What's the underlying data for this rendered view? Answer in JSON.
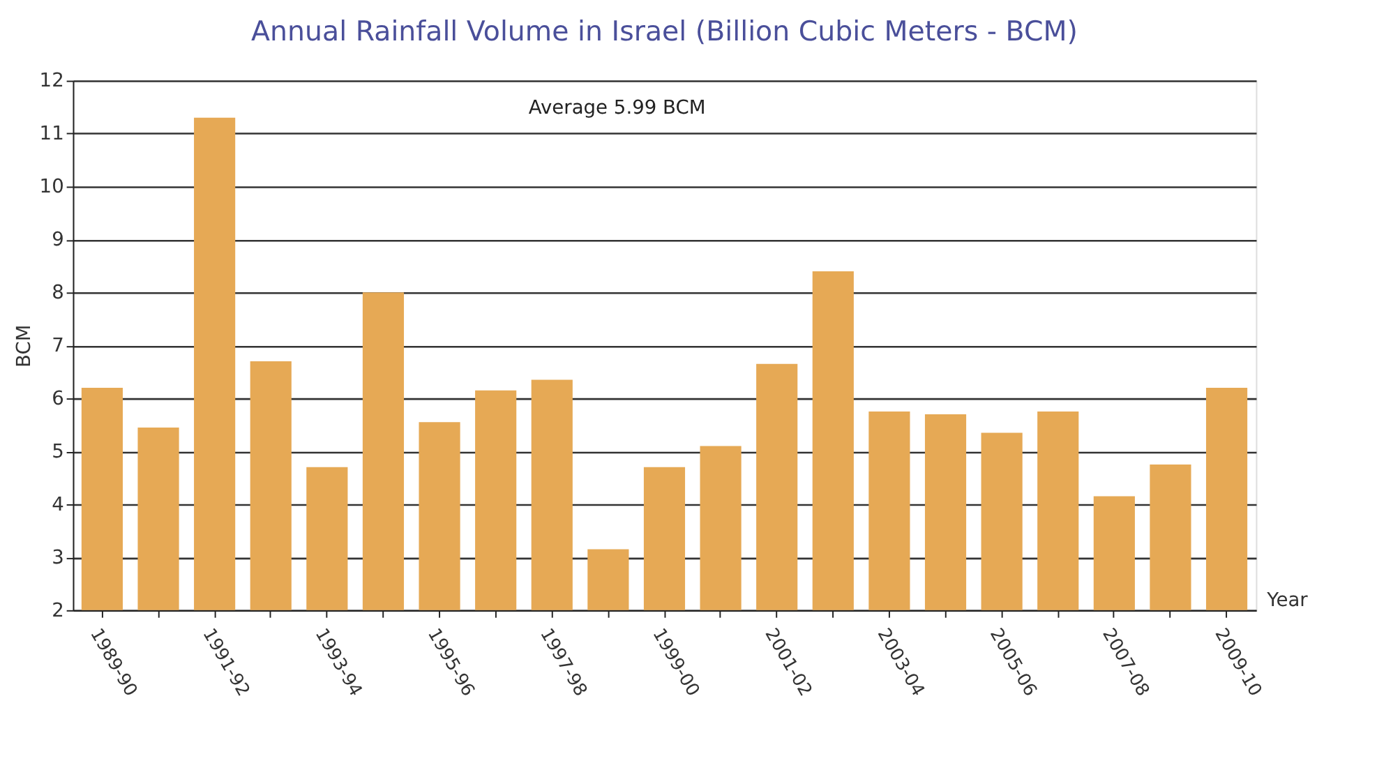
{
  "chart_data": {
    "type": "bar",
    "title": "Annual Rainfall Volume in Israel (Billion Cubic Meters - BCM)",
    "xlabel": "Year",
    "ylabel": "BCM",
    "categories": [
      "1989-90",
      null,
      "1991-92",
      null,
      "1993-94",
      null,
      "1995-96",
      null,
      "1997-98",
      null,
      "1999-00",
      null,
      "2001-02",
      null,
      "2003-04",
      null,
      "2005-06",
      null,
      "2007-08",
      null,
      "2009-10"
    ],
    "values": [
      6.2,
      5.45,
      11.3,
      6.7,
      4.7,
      8.0,
      5.55,
      6.15,
      6.35,
      3.15,
      4.7,
      5.1,
      6.65,
      8.4,
      5.75,
      5.7,
      5.35,
      5.75,
      4.15,
      4.75,
      6.2
    ],
    "color": "#e6a955",
    "ylim": [
      2,
      12
    ],
    "yticks": [
      2,
      3,
      4,
      5,
      6,
      7,
      8,
      9,
      10,
      11,
      12
    ],
    "grid": "y",
    "annotations": [
      "Average 5.99 BCM"
    ]
  }
}
